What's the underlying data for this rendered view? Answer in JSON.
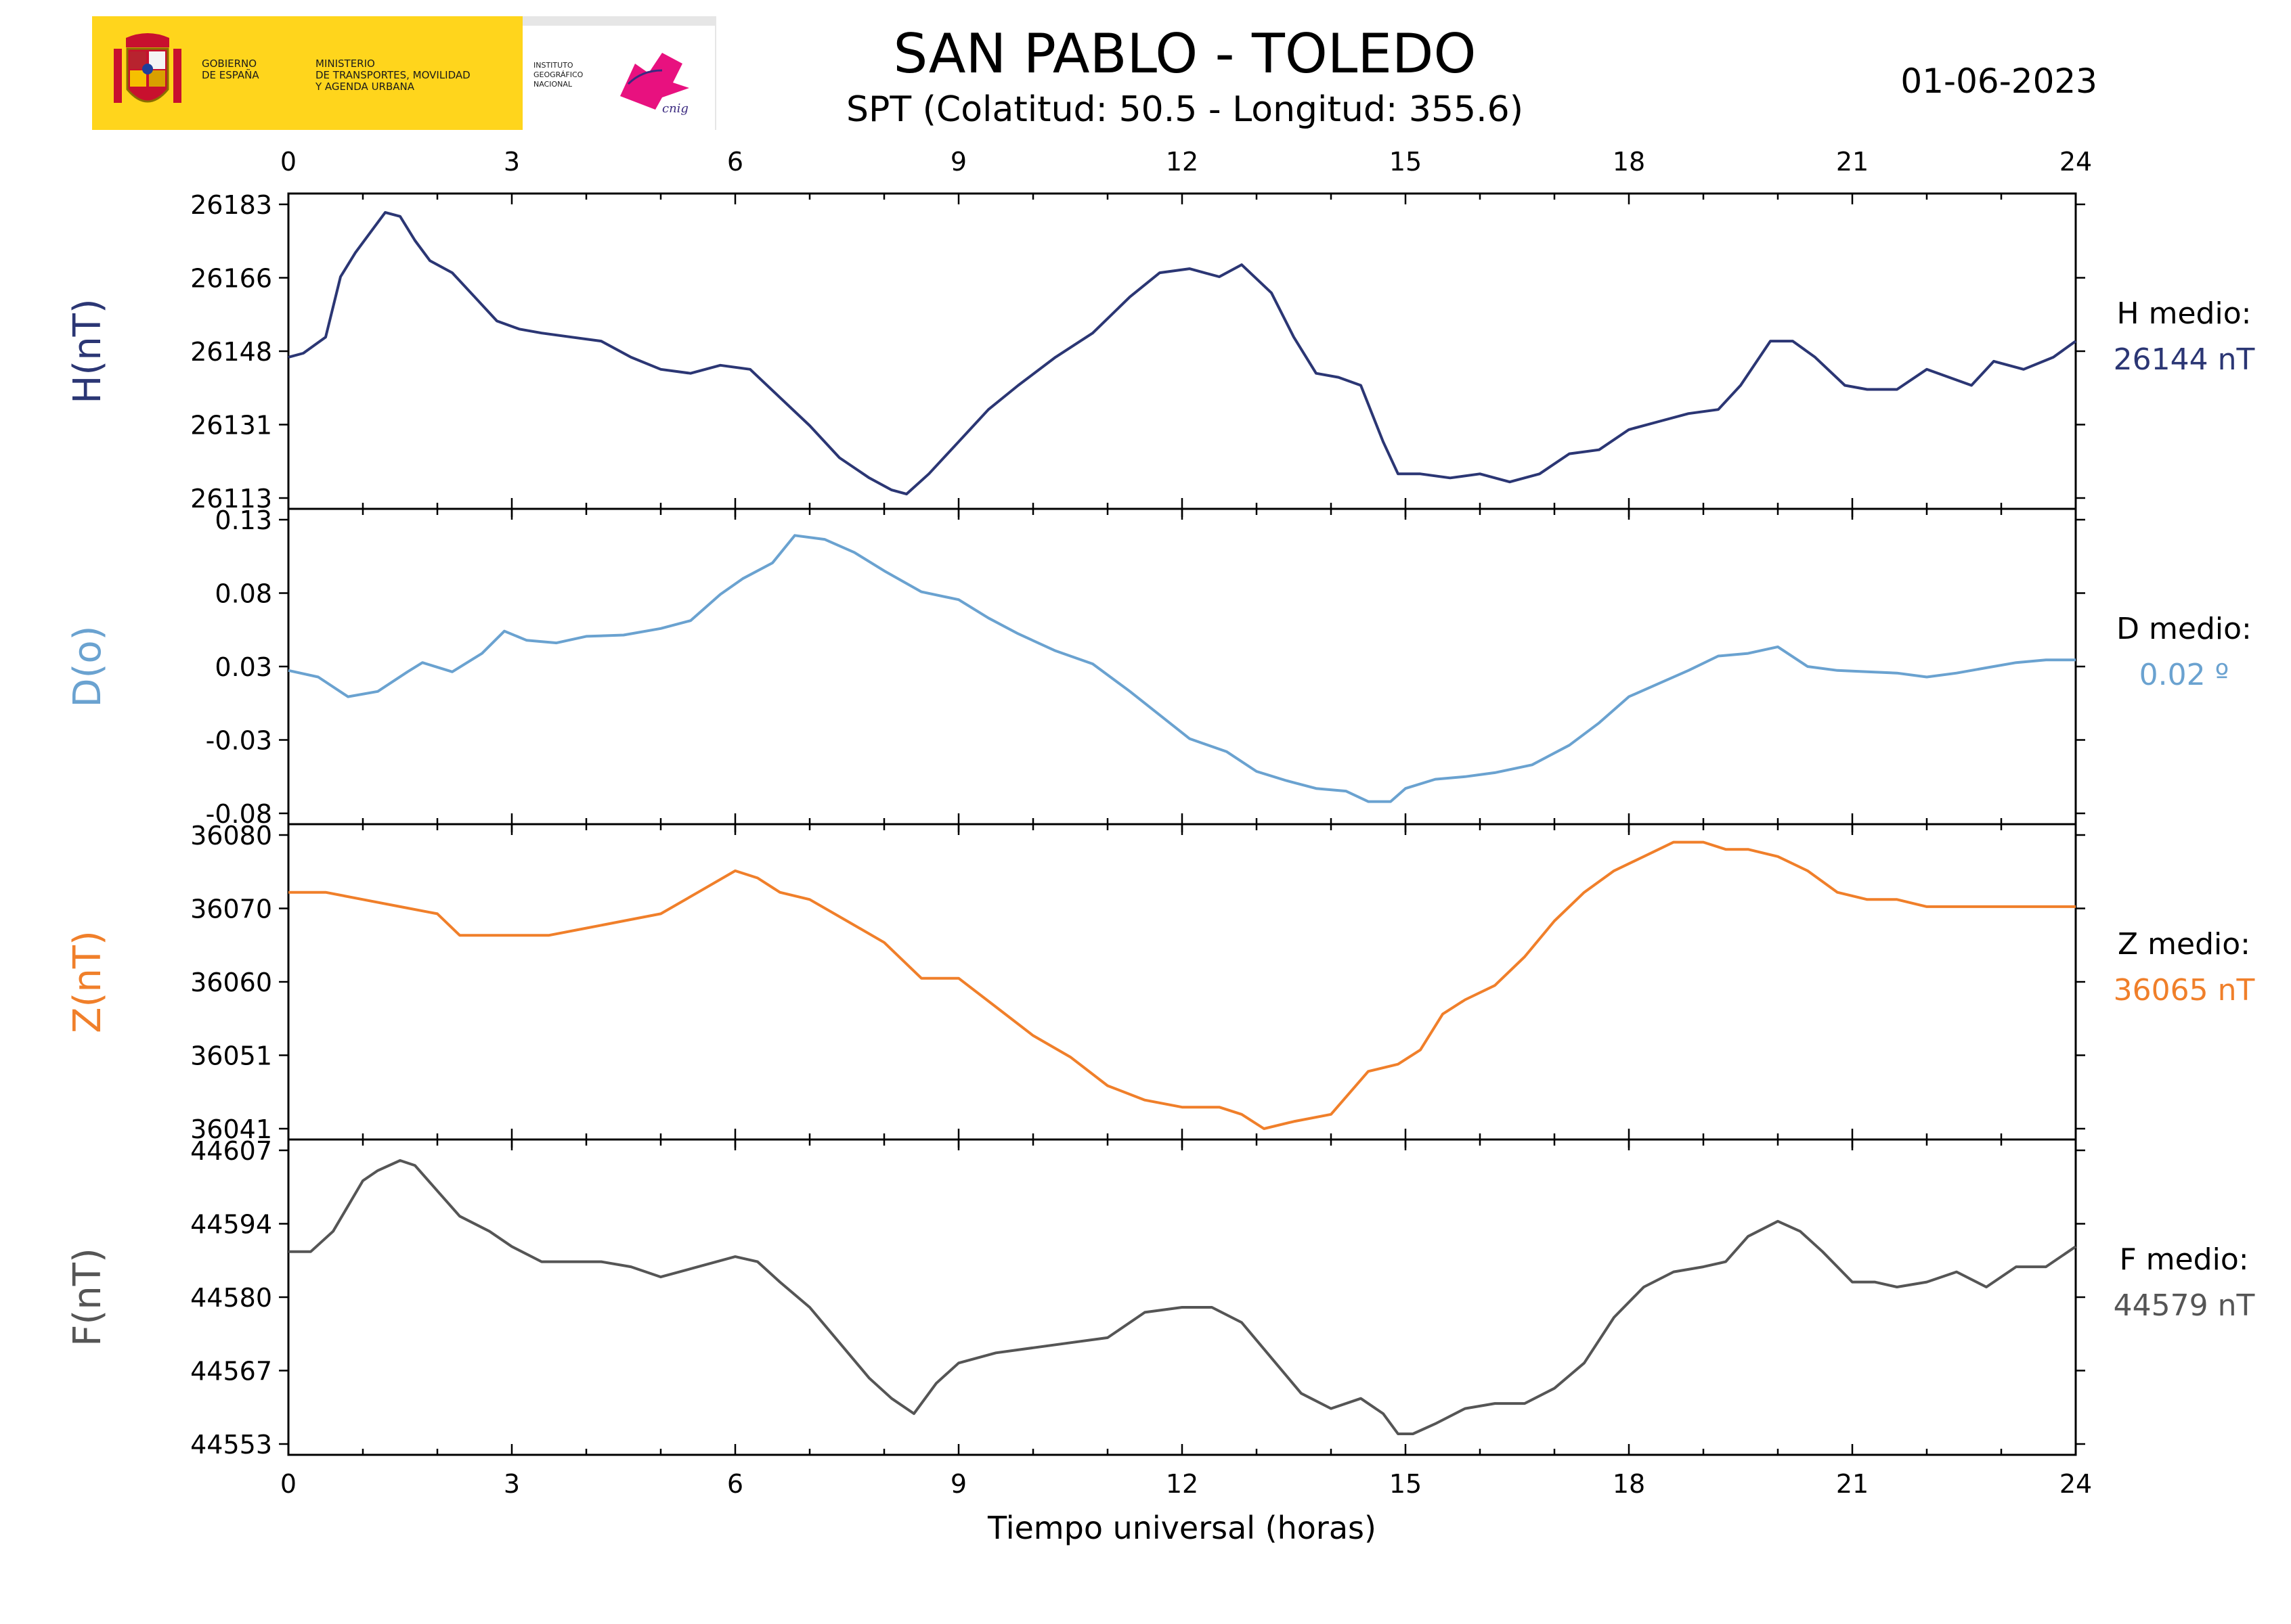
{
  "header": {
    "title": "SAN PABLO - TOLEDO",
    "subtitle": "SPT (Colatitud: 50.5 - Longitud: 355.6)",
    "date": "01-06-2023"
  },
  "logo": {
    "gobierno": "GOBIERNO\nDE ESPAÑA",
    "ministerio": "MINISTERIO\nDE TRANSPORTES, MOVILIDAD\nY AGENDA URBANA",
    "instituto": "INSTITUTO\nGEOGRÁFICO\nNACIONAL",
    "cnig": "cnig"
  },
  "chart_data": {
    "type": "line",
    "xlabel": "Tiempo universal (horas)",
    "x_ticks": [
      "0",
      "3",
      "6",
      "9",
      "12",
      "15",
      "18",
      "21",
      "24"
    ],
    "xlim": [
      0,
      24
    ],
    "grid": false,
    "panels": [
      {
        "ylabel": "H(nT)",
        "color": "#2b3674",
        "y_ticks": [
          "26183",
          "26166",
          "26148",
          "26131",
          "26113"
        ],
        "ylim": [
          26112,
          26185
        ],
        "mean_label": "H medio:",
        "mean_value": "26144 nT",
        "x": [
          0,
          0.2,
          0.5,
          0.7,
          0.9,
          1.1,
          1.3,
          1.5,
          1.7,
          1.9,
          2.2,
          2.5,
          2.8,
          3.1,
          3.4,
          3.8,
          4.2,
          4.6,
          5.0,
          5.4,
          5.8,
          6.2,
          6.6,
          7.0,
          7.4,
          7.8,
          8.1,
          8.3,
          8.6,
          9.0,
          9.4,
          9.8,
          10.3,
          10.8,
          11.3,
          11.7,
          12.1,
          12.5,
          12.8,
          13.2,
          13.5,
          13.8,
          14.1,
          14.4,
          14.7,
          14.9,
          15.2,
          15.6,
          16.0,
          16.4,
          16.8,
          17.2,
          17.6,
          18.0,
          18.4,
          18.8,
          19.2,
          19.5,
          19.9,
          20.2,
          20.5,
          20.9,
          21.2,
          21.6,
          22.0,
          22.3,
          22.6,
          22.9,
          23.3,
          23.7,
          24.0
        ],
        "values": [
          26147,
          26148,
          26152,
          26167,
          26173,
          26178,
          26183,
          26182,
          26176,
          26171,
          26168,
          26162,
          26156,
          26154,
          26153,
          26152,
          26151,
          26147,
          26144,
          26143,
          26145,
          26144,
          26137,
          26130,
          26122,
          26117,
          26114,
          26113,
          26118,
          26126,
          26134,
          26140,
          26147,
          26153,
          26162,
          26168,
          26169,
          26167,
          26170,
          26163,
          26152,
          26143,
          26142,
          26140,
          26126,
          26118,
          26118,
          26117,
          26118,
          26116,
          26118,
          26123,
          26124,
          26129,
          26131,
          26133,
          26134,
          26140,
          26151,
          26151,
          26147,
          26140,
          26139,
          26139,
          26144,
          26142,
          26140,
          26146,
          26144,
          26147,
          26151
        ]
      },
      {
        "ylabel": "D(o)",
        "color": "#6aa2d0",
        "y_ticks": [
          "0.13",
          "0.08",
          "0.03",
          "-0.03",
          "-0.08"
        ],
        "ylim": [
          -0.087,
          0.137
        ],
        "mean_label": "D medio:",
        "mean_value": "0.02 º",
        "x": [
          0,
          0.4,
          0.8,
          1.2,
          1.6,
          1.8,
          2.2,
          2.6,
          2.9,
          3.2,
          3.6,
          4.0,
          4.5,
          5.0,
          5.4,
          5.8,
          6.1,
          6.5,
          6.8,
          7.2,
          7.6,
          8.0,
          8.5,
          9.0,
          9.4,
          9.8,
          10.3,
          10.8,
          11.3,
          11.7,
          12.1,
          12.6,
          13.0,
          13.4,
          13.8,
          14.2,
          14.5,
          14.8,
          15.0,
          15.4,
          15.8,
          16.2,
          16.7,
          17.2,
          17.6,
          18.0,
          18.4,
          18.8,
          19.2,
          19.6,
          20.0,
          20.4,
          20.8,
          21.2,
          21.6,
          22.0,
          22.4,
          22.8,
          23.2,
          23.6,
          24.0
        ],
        "values": [
          0.022,
          0.017,
          0.002,
          0.006,
          0.021,
          0.028,
          0.021,
          0.035,
          0.052,
          0.045,
          0.043,
          0.048,
          0.049,
          0.054,
          0.06,
          0.08,
          0.092,
          0.104,
          0.125,
          0.122,
          0.112,
          0.098,
          0.082,
          0.076,
          0.062,
          0.05,
          0.037,
          0.027,
          0.006,
          -0.012,
          -0.03,
          -0.04,
          -0.055,
          -0.062,
          -0.068,
          -0.07,
          -0.078,
          -0.078,
          -0.068,
          -0.061,
          -0.059,
          -0.056,
          -0.05,
          -0.035,
          -0.018,
          0.002,
          0.012,
          0.022,
          0.033,
          0.035,
          0.04,
          0.025,
          0.022,
          0.021,
          0.02,
          0.017,
          0.02,
          0.024,
          0.028,
          0.03,
          0.03
        ]
      },
      {
        "ylabel": "Z(nT)",
        "color": "#f07f2a",
        "y_ticks": [
          "36080",
          "36070",
          "36060",
          "36051",
          "36041"
        ],
        "ylim": [
          36040,
          36081
        ],
        "mean_label": "Z medio:",
        "mean_value": "36065 nT",
        "x": [
          0,
          0.5,
          1.0,
          1.5,
          2.0,
          2.3,
          2.6,
          3.0,
          3.5,
          4.0,
          4.5,
          5.0,
          5.5,
          6.0,
          6.3,
          6.6,
          7.0,
          7.5,
          8.0,
          8.5,
          9.0,
          9.5,
          10.0,
          10.5,
          11.0,
          11.5,
          12.0,
          12.5,
          12.8,
          13.1,
          13.5,
          14.0,
          14.5,
          14.9,
          15.2,
          15.5,
          15.8,
          16.2,
          16.6,
          17.0,
          17.4,
          17.8,
          18.2,
          18.6,
          19.0,
          19.3,
          19.6,
          20.0,
          20.4,
          20.8,
          21.2,
          21.6,
          22.0,
          22.5,
          23.0,
          23.5,
          24.0
        ],
        "values": [
          36073,
          36073,
          36072,
          36071,
          36070,
          36067,
          36067,
          36067,
          36067,
          36068,
          36069,
          36070,
          36073,
          36076,
          36075,
          36073,
          36072,
          36069,
          36066,
          36061,
          36061,
          36057,
          36053,
          36050,
          36046,
          36044,
          36043,
          36043,
          36042,
          36040,
          36041,
          36042,
          36048,
          36049,
          36051,
          36056,
          36058,
          36060,
          36064,
          36069,
          36073,
          36076,
          36078,
          36080,
          36080,
          36079,
          36079,
          36078,
          36076,
          36073,
          36072,
          36072,
          36071,
          36071,
          36071,
          36071,
          36071
        ]
      },
      {
        "ylabel": "F(nT)",
        "color": "#555555",
        "y_ticks": [
          "44607",
          "44594",
          "44580",
          "44567",
          "44553"
        ],
        "ylim": [
          44551,
          44609
        ],
        "mean_label": "F medio:",
        "mean_value": "44579 nT",
        "x": [
          0,
          0.3,
          0.6,
          0.8,
          1.0,
          1.2,
          1.5,
          1.7,
          2.0,
          2.3,
          2.7,
          3.0,
          3.4,
          3.8,
          4.2,
          4.6,
          5.0,
          5.5,
          6.0,
          6.3,
          6.6,
          7.0,
          7.4,
          7.8,
          8.1,
          8.4,
          8.7,
          9.0,
          9.5,
          10.0,
          10.5,
          11.0,
          11.5,
          12.0,
          12.4,
          12.8,
          13.2,
          13.6,
          14.0,
          14.4,
          14.7,
          14.9,
          15.1,
          15.4,
          15.8,
          16.2,
          16.6,
          17.0,
          17.4,
          17.8,
          18.2,
          18.6,
          19.0,
          19.3,
          19.6,
          20.0,
          20.3,
          20.6,
          21.0,
          21.3,
          21.6,
          22.0,
          22.4,
          22.8,
          23.2,
          23.6,
          24.0
        ],
        "values": [
          44589,
          44589,
          44593,
          44598,
          44603,
          44605,
          44607,
          44606,
          44601,
          44596,
          44593,
          44590,
          44587,
          44587,
          44587,
          44586,
          44584,
          44586,
          44588,
          44587,
          44583,
          44578,
          44571,
          44564,
          44560,
          44557,
          44563,
          44567,
          44569,
          44570,
          44571,
          44572,
          44577,
          44578,
          44578,
          44575,
          44568,
          44561,
          44558,
          44560,
          44557,
          44553,
          44553,
          44555,
          44558,
          44559,
          44559,
          44562,
          44567,
          44576,
          44582,
          44585,
          44586,
          44587,
          44592,
          44595,
          44593,
          44589,
          44583,
          44583,
          44582,
          44583,
          44585,
          44582,
          44586,
          44586,
          44590
        ]
      }
    ]
  }
}
